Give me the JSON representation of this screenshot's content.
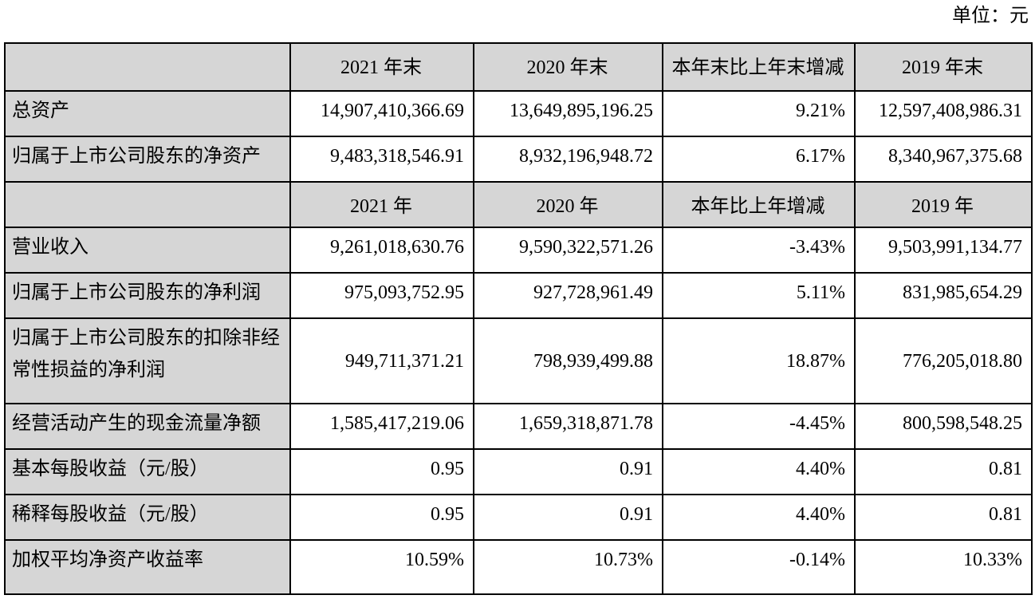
{
  "unit_label": "单位：元",
  "colors": {
    "shaded_cell_bg": "#d6d6d6",
    "border": "#000000",
    "text": "#000000"
  },
  "table": {
    "sections": [
      {
        "header": [
          "",
          "2021 年末",
          "2020 年末",
          "本年末比上年末增减",
          "2019 年末"
        ],
        "rows": [
          {
            "label": "总资产",
            "values": [
              "14,907,410,366.69",
              "13,649,895,196.25",
              "9.21%",
              "12,597,408,986.31"
            ]
          },
          {
            "label": "归属于上市公司股东的净资产",
            "values": [
              "9,483,318,546.91",
              "8,932,196,948.72",
              "6.17%",
              "8,340,967,375.68"
            ]
          }
        ]
      },
      {
        "header": [
          "",
          "2021 年",
          "2020 年",
          "本年比上年增减",
          "2019 年"
        ],
        "rows": [
          {
            "label": "营业收入",
            "values": [
              "9,261,018,630.76",
              "9,590,322,571.26",
              "-3.43%",
              "9,503,991,134.77"
            ]
          },
          {
            "label": "归属于上市公司股东的净利润",
            "values": [
              "975,093,752.95",
              "927,728,961.49",
              "5.11%",
              "831,985,654.29"
            ]
          },
          {
            "label": "归属于上市公司股东的扣除非经常性损益的净利润",
            "values": [
              "949,711,371.21",
              "798,939,499.88",
              "18.87%",
              "776,205,018.80"
            ]
          },
          {
            "label": "经营活动产生的现金流量净额",
            "values": [
              "1,585,417,219.06",
              "1,659,318,871.78",
              "-4.45%",
              "800,598,548.25"
            ]
          },
          {
            "label": "基本每股收益（元/股）",
            "values": [
              "0.95",
              "0.91",
              "4.40%",
              "0.81"
            ]
          },
          {
            "label": "稀释每股收益（元/股）",
            "values": [
              "0.95",
              "0.91",
              "4.40%",
              "0.81"
            ]
          },
          {
            "label": "加权平均净资产收益率",
            "values": [
              "10.59%",
              "10.73%",
              "-0.14%",
              "10.33%"
            ]
          }
        ]
      }
    ]
  }
}
